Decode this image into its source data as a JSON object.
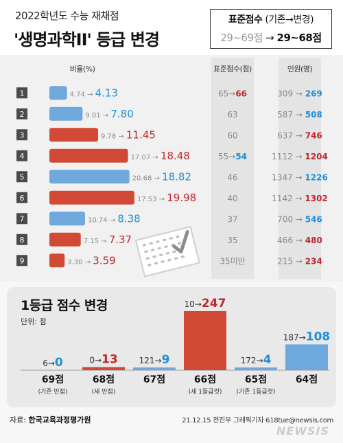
{
  "header": {
    "subtitle": "2022학년도 수능 재채점",
    "title": "'생명과학II' 등급 변경",
    "std_box": {
      "label_bold": "표준점수",
      "label_rest": " (기존→변경)",
      "old": "29~69점",
      "arrow": " → ",
      "new": "29~68점"
    }
  },
  "columns": {
    "ratio": "비율(%)",
    "score": "표준점수(점)",
    "count": "인원(명)"
  },
  "colors": {
    "up": "#d24a35",
    "down": "#6fa8dc",
    "up_text": "#c1272d",
    "down_text": "#1f8fd9",
    "old_text": "#8a8a8a",
    "grade_box": "#4a4a4a"
  },
  "chart_data": [
    {
      "type": "bar",
      "orientation": "horizontal",
      "categories": [
        "1",
        "2",
        "3",
        "4",
        "5",
        "6",
        "7",
        "8",
        "9"
      ],
      "series": [
        {
          "name": "기존",
          "values": [
            4.74,
            9.01,
            9.78,
            17.07,
            20.68,
            17.53,
            10.74,
            7.15,
            3.3
          ]
        },
        {
          "name": "변경",
          "values": [
            4.13,
            7.8,
            11.45,
            18.48,
            18.82,
            19.98,
            8.38,
            7.37,
            3.59
          ]
        }
      ],
      "old_labels": [
        "4.74",
        "9.01",
        "9.78",
        "17.07",
        "20.68",
        "17.53",
        "10.74",
        "7.15",
        "3.30"
      ],
      "new_labels": [
        "4.13",
        "7.80",
        "11.45",
        "18.48",
        "18.82",
        "19.98",
        "8.38",
        "7.37",
        "3.59"
      ],
      "direction": [
        "down",
        "down",
        "up",
        "up",
        "down",
        "up",
        "down",
        "up",
        "up"
      ],
      "xlabel": "비율(%)",
      "std_score": [
        "65→66",
        "63",
        "60",
        "55→54",
        "46",
        "40",
        "37",
        "35",
        "35미만"
      ],
      "std_score_parts": [
        {
          "old": "65",
          "new": "66",
          "dir": "up"
        },
        {
          "old": "",
          "new": "63",
          "dir": "same"
        },
        {
          "old": "",
          "new": "60",
          "dir": "same"
        },
        {
          "old": "55",
          "new": "54",
          "dir": "down"
        },
        {
          "old": "",
          "new": "46",
          "dir": "same"
        },
        {
          "old": "",
          "new": "40",
          "dir": "same"
        },
        {
          "old": "",
          "new": "37",
          "dir": "same"
        },
        {
          "old": "",
          "new": "35",
          "dir": "same"
        },
        {
          "old": "",
          "new": "35미만",
          "dir": "same"
        }
      ],
      "count_old": [
        "309",
        "587",
        "637",
        "1112",
        "1347",
        "1142",
        "700",
        "466",
        "215"
      ],
      "count_new": [
        "269",
        "508",
        "746",
        "1204",
        "1226",
        "1302",
        "546",
        "480",
        "234"
      ],
      "count_dir": [
        "down",
        "down",
        "up",
        "up",
        "down",
        "up",
        "down",
        "up",
        "up"
      ]
    },
    {
      "type": "bar",
      "title": "1등급 점수 변경",
      "unit": "단위: 점",
      "categories": [
        "69점",
        "68점",
        "67점",
        "66점",
        "65점",
        "64점"
      ],
      "sublabels": [
        "(기존 만점)",
        "(새 만점)",
        "",
        "(새 1등급컷)",
        "(기존 1등급컷)",
        ""
      ],
      "series": [
        {
          "name": "기존",
          "values": [
            6,
            0,
            121,
            10,
            172,
            187
          ]
        },
        {
          "name": "변경",
          "values": [
            0,
            13,
            9,
            247,
            4,
            108
          ]
        }
      ],
      "direction": [
        "down",
        "up",
        "down",
        "up",
        "down",
        "down"
      ],
      "ylim": [
        0,
        247
      ]
    }
  ],
  "footer": {
    "source_label": "자료: ",
    "source": "한국교육과정평가원",
    "credit": "21.12.15 전진우 그래픽기자 618tue@newsis.com",
    "watermark": "NEWSIS"
  }
}
